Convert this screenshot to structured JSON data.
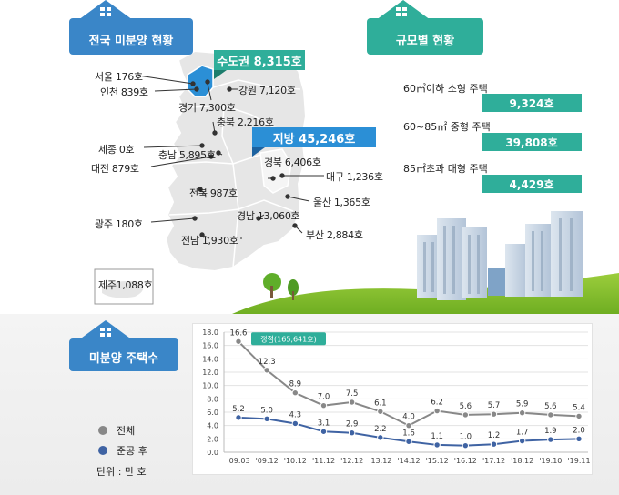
{
  "national": {
    "heading": "전국 미분양 현황",
    "capital_banner": "수도권 8,315호",
    "provincial_banner": "지방 45,246호",
    "regions": [
      {
        "id": "seoul",
        "label": "서울  176호"
      },
      {
        "id": "incheon",
        "label": "인천 839호"
      },
      {
        "id": "gangwon",
        "label": "강원 7,120호"
      },
      {
        "id": "gyeonggi",
        "label": "경기 7,300호"
      },
      {
        "id": "chungbuk",
        "label": "충북 2,216호"
      },
      {
        "id": "sejong",
        "label": "세종 0호"
      },
      {
        "id": "chungnam",
        "label": "충남 5,895호"
      },
      {
        "id": "daejeon",
        "label": "대전 879호"
      },
      {
        "id": "gyeongbuk",
        "label": "경북 6,406호"
      },
      {
        "id": "daegu",
        "label": "대구 1,236호"
      },
      {
        "id": "jeonbuk",
        "label": "전북 987호"
      },
      {
        "id": "ulsan",
        "label": "울산 1,365호"
      },
      {
        "id": "gyeongnam",
        "label": "경남 13,060호"
      },
      {
        "id": "gwangju",
        "label": "광주 180호"
      },
      {
        "id": "busan",
        "label": "부산 2,884호"
      },
      {
        "id": "jeonnam",
        "label": "전남 1,930호"
      },
      {
        "id": "jeju",
        "label": "제주1,088호"
      }
    ]
  },
  "by_size": {
    "heading": "규모별 현황",
    "rows": [
      {
        "label": "60㎡이하 소형 주택",
        "value": "9,324호"
      },
      {
        "label": "60~85㎡ 중형 주택",
        "value": "39,808호"
      },
      {
        "label": "85㎡초과 대형 주택",
        "value": "4,429호"
      }
    ]
  },
  "trend": {
    "heading": "미분양 주택수",
    "legend": [
      {
        "name": "전체",
        "color": "#888888"
      },
      {
        "name": "준공 후",
        "color": "#3f63a3"
      }
    ],
    "unit": "단위 : 만 호"
  },
  "colors": {
    "teal": "#2fae9a",
    "blue_heading": "#3a86c8",
    "capital_region": "#2b8fd6",
    "map_gray": "#e6e6e6",
    "total_line": "#888888",
    "completed_line": "#3f63a3"
  },
  "chart_data": {
    "type": "line",
    "categories": [
      "'09.03",
      "'09.12",
      "'10.12",
      "'11.12",
      "'12.12",
      "'13.12",
      "'14.12",
      "'15.12",
      "'16.12",
      "'17.12",
      "'18.12",
      "'19.10",
      "'19.11"
    ],
    "series": [
      {
        "name": "전체",
        "values": [
          16.6,
          12.3,
          8.9,
          7.0,
          7.5,
          6.1,
          4.0,
          6.2,
          5.6,
          5.7,
          5.9,
          5.6,
          5.4
        ],
        "labels": [
          "16.6",
          "12.3",
          "8.9",
          "7.0",
          "7.5",
          "6.1",
          "4.0",
          "6.2",
          "5.6",
          "5.7",
          "5.9",
          "5.6",
          "5.4"
        ]
      },
      {
        "name": "준공 후",
        "values": [
          5.2,
          5.0,
          4.3,
          3.1,
          2.9,
          2.2,
          1.6,
          1.1,
          1.0,
          1.2,
          1.7,
          1.9,
          2.0
        ],
        "labels": [
          "5.2",
          "5.0",
          "4.3",
          "3.1",
          "2.9",
          "2.2",
          "1.6",
          "1.1",
          "1.0",
          "1.2",
          "1.7",
          "1.9",
          "2.0"
        ]
      }
    ],
    "yticks": [
      "0.0",
      "2.0",
      "4.0",
      "6.0",
      "8.0",
      "10.0",
      "12.0",
      "14.0",
      "16.0",
      "18.0"
    ],
    "ylim": [
      0,
      18
    ],
    "annotation": "정점(165,641호)",
    "grid": true
  }
}
